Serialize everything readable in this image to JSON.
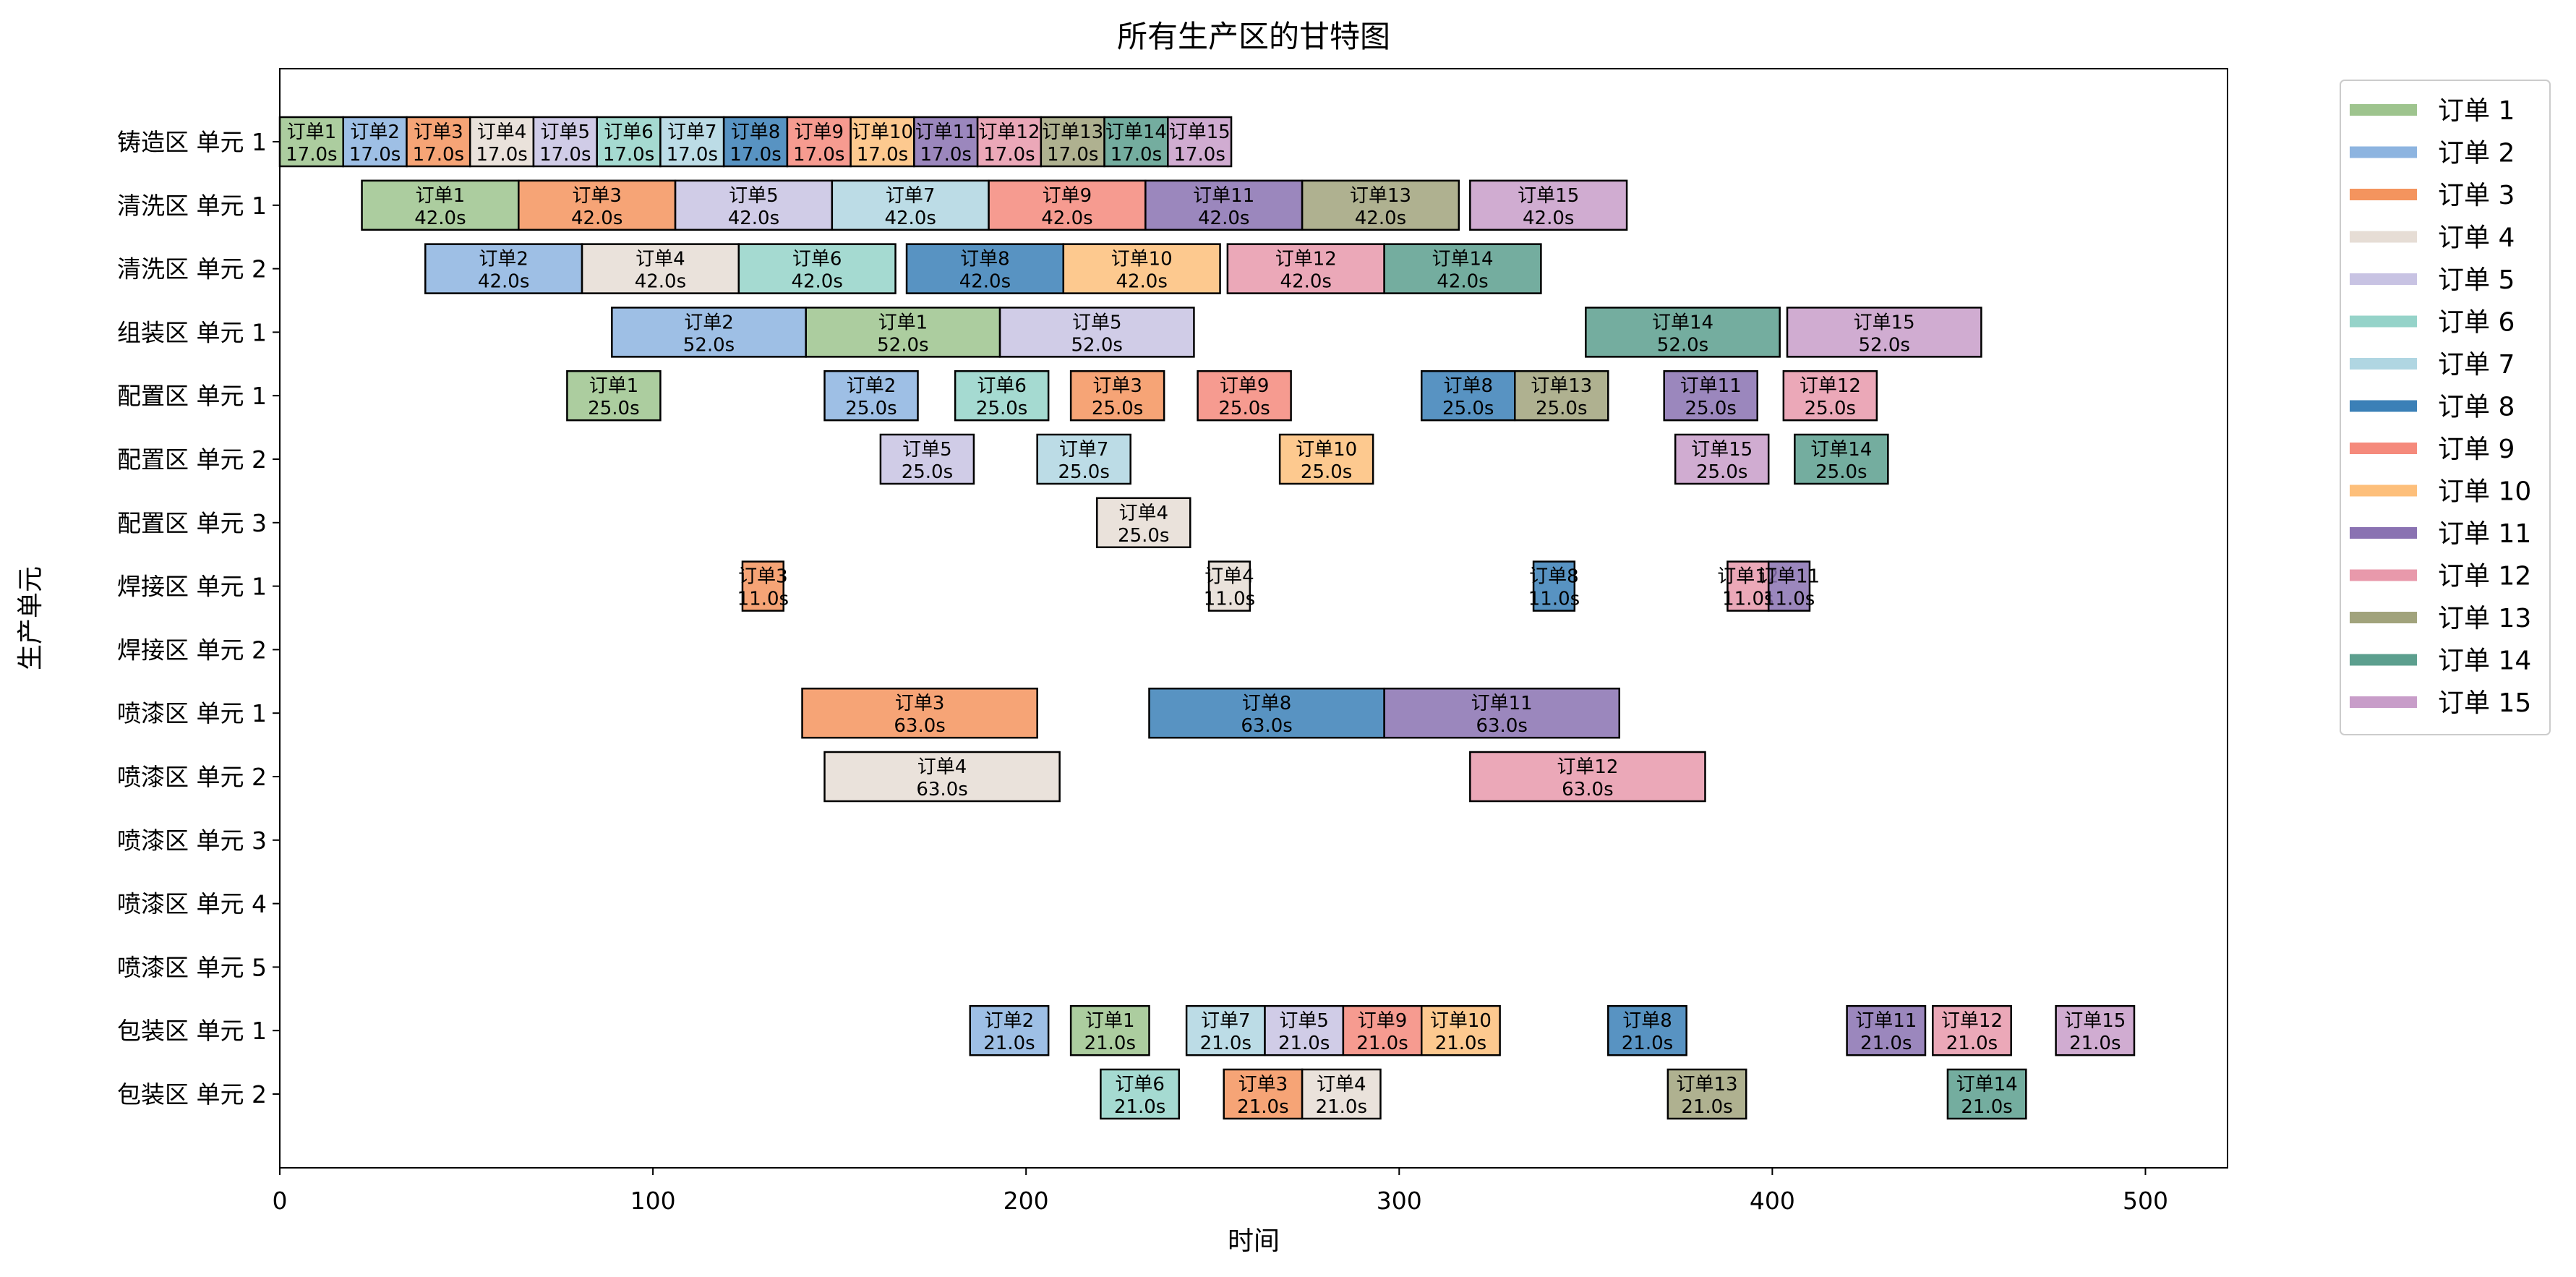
{
  "chart_data": {
    "type": "gantt",
    "title": "所有生产区的甘特图",
    "xlabel": "时间",
    "ylabel": "生产单元",
    "xlim": [
      0,
      522
    ],
    "xticks": [
      0,
      100,
      200,
      300,
      400,
      500
    ],
    "grid": false,
    "legend_position": "outside-right-top",
    "units": [
      "铸造区 单元 1",
      "清洗区 单元 1",
      "清洗区 单元 2",
      "组装区 单元 1",
      "配置区 单元 1",
      "配置区 单元 2",
      "配置区 单元 3",
      "焊接区 单元 1",
      "焊接区 单元 2",
      "喷漆区 单元 1",
      "喷漆区 单元 2",
      "喷漆区 单元 3",
      "喷漆区 单元 4",
      "喷漆区 单元 5",
      "包装区 单元 1",
      "包装区 单元 2"
    ],
    "legend": [
      {
        "label": "订单 1",
        "color": "#9ec48e"
      },
      {
        "label": "订单 2",
        "color": "#8db4e0"
      },
      {
        "label": "订单 3",
        "color": "#f4945e"
      },
      {
        "label": "订单 4",
        "color": "#e6ddd5"
      },
      {
        "label": "订单 5",
        "color": "#c8c3e3"
      },
      {
        "label": "订单 6",
        "color": "#95d3c9"
      },
      {
        "label": "订单 7",
        "color": "#b0d6e2"
      },
      {
        "label": "订单 8",
        "color": "#3b80b7"
      },
      {
        "label": "订单 9",
        "color": "#f58a7c"
      },
      {
        "label": "订单 10",
        "color": "#fdbf7b"
      },
      {
        "label": "订单 11",
        "color": "#8a72b2"
      },
      {
        "label": "订单 12",
        "color": "#e899ab"
      },
      {
        "label": "订单 13",
        "color": "#a1a37c"
      },
      {
        "label": "订单 14",
        "color": "#5c9f8e"
      },
      {
        "label": "订单 15",
        "color": "#c89dc9"
      }
    ],
    "tasks": [
      {
        "unit": 0,
        "order": 1,
        "label": "订单1",
        "start": 0,
        "duration": 17,
        "duration_label": "17.0s"
      },
      {
        "unit": 0,
        "order": 2,
        "label": "订单2",
        "start": 17,
        "duration": 17,
        "duration_label": "17.0s"
      },
      {
        "unit": 0,
        "order": 3,
        "label": "订单3",
        "start": 34,
        "duration": 17,
        "duration_label": "17.0s"
      },
      {
        "unit": 0,
        "order": 4,
        "label": "订单4",
        "start": 51,
        "duration": 17,
        "duration_label": "17.0s"
      },
      {
        "unit": 0,
        "order": 5,
        "label": "订单5",
        "start": 68,
        "duration": 17,
        "duration_label": "17.0s"
      },
      {
        "unit": 0,
        "order": 6,
        "label": "订单6",
        "start": 85,
        "duration": 17,
        "duration_label": "17.0s"
      },
      {
        "unit": 0,
        "order": 7,
        "label": "订单7",
        "start": 102,
        "duration": 17,
        "duration_label": "17.0s"
      },
      {
        "unit": 0,
        "order": 8,
        "label": "订单8",
        "start": 119,
        "duration": 17,
        "duration_label": "17.0s"
      },
      {
        "unit": 0,
        "order": 9,
        "label": "订单9",
        "start": 136,
        "duration": 17,
        "duration_label": "17.0s"
      },
      {
        "unit": 0,
        "order": 10,
        "label": "订单10",
        "start": 153,
        "duration": 17,
        "duration_label": "17.0s"
      },
      {
        "unit": 0,
        "order": 11,
        "label": "订单11",
        "start": 170,
        "duration": 17,
        "duration_label": "17.0s"
      },
      {
        "unit": 0,
        "order": 12,
        "label": "订单12",
        "start": 187,
        "duration": 17,
        "duration_label": "17.0s"
      },
      {
        "unit": 0,
        "order": 13,
        "label": "订单13",
        "start": 204,
        "duration": 17,
        "duration_label": "17.0s"
      },
      {
        "unit": 0,
        "order": 14,
        "label": "订单14",
        "start": 221,
        "duration": 17,
        "duration_label": "17.0s"
      },
      {
        "unit": 0,
        "order": 15,
        "label": "订单15",
        "start": 238,
        "duration": 17,
        "duration_label": "17.0s"
      },
      {
        "unit": 1,
        "order": 1,
        "label": "订单1",
        "start": 22,
        "duration": 42,
        "duration_label": "42.0s"
      },
      {
        "unit": 1,
        "order": 3,
        "label": "订单3",
        "start": 64,
        "duration": 42,
        "duration_label": "42.0s"
      },
      {
        "unit": 1,
        "order": 5,
        "label": "订单5",
        "start": 106,
        "duration": 42,
        "duration_label": "42.0s"
      },
      {
        "unit": 1,
        "order": 7,
        "label": "订单7",
        "start": 148,
        "duration": 42,
        "duration_label": "42.0s"
      },
      {
        "unit": 1,
        "order": 9,
        "label": "订单9",
        "start": 190,
        "duration": 42,
        "duration_label": "42.0s"
      },
      {
        "unit": 1,
        "order": 11,
        "label": "订单11",
        "start": 232,
        "duration": 42,
        "duration_label": "42.0s"
      },
      {
        "unit": 1,
        "order": 13,
        "label": "订单13",
        "start": 274,
        "duration": 42,
        "duration_label": "42.0s"
      },
      {
        "unit": 1,
        "order": 15,
        "label": "订单15",
        "start": 319,
        "duration": 42,
        "duration_label": "42.0s"
      },
      {
        "unit": 2,
        "order": 2,
        "label": "订单2",
        "start": 39,
        "duration": 42,
        "duration_label": "42.0s"
      },
      {
        "unit": 2,
        "order": 4,
        "label": "订单4",
        "start": 81,
        "duration": 42,
        "duration_label": "42.0s"
      },
      {
        "unit": 2,
        "order": 6,
        "label": "订单6",
        "start": 123,
        "duration": 42,
        "duration_label": "42.0s"
      },
      {
        "unit": 2,
        "order": 8,
        "label": "订单8",
        "start": 168,
        "duration": 42,
        "duration_label": "42.0s"
      },
      {
        "unit": 2,
        "order": 10,
        "label": "订单10",
        "start": 210,
        "duration": 42,
        "duration_label": "42.0s"
      },
      {
        "unit": 2,
        "order": 12,
        "label": "订单12",
        "start": 254,
        "duration": 42,
        "duration_label": "42.0s"
      },
      {
        "unit": 2,
        "order": 14,
        "label": "订单14",
        "start": 296,
        "duration": 42,
        "duration_label": "42.0s"
      },
      {
        "unit": 3,
        "order": 2,
        "label": "订单2",
        "start": 89,
        "duration": 52,
        "duration_label": "52.0s"
      },
      {
        "unit": 3,
        "order": 1,
        "label": "订单1",
        "start": 141,
        "duration": 52,
        "duration_label": "52.0s"
      },
      {
        "unit": 3,
        "order": 5,
        "label": "订单5",
        "start": 193,
        "duration": 52,
        "duration_label": "52.0s"
      },
      {
        "unit": 3,
        "order": 14,
        "label": "订单14",
        "start": 350,
        "duration": 52,
        "duration_label": "52.0s"
      },
      {
        "unit": 3,
        "order": 15,
        "label": "订单15",
        "start": 404,
        "duration": 52,
        "duration_label": "52.0s"
      },
      {
        "unit": 4,
        "order": 1,
        "label": "订单1",
        "start": 77,
        "duration": 25,
        "duration_label": "25.0s"
      },
      {
        "unit": 4,
        "order": 2,
        "label": "订单2",
        "start": 146,
        "duration": 25,
        "duration_label": "25.0s"
      },
      {
        "unit": 4,
        "order": 6,
        "label": "订单6",
        "start": 181,
        "duration": 25,
        "duration_label": "25.0s"
      },
      {
        "unit": 4,
        "order": 3,
        "label": "订单3",
        "start": 212,
        "duration": 25,
        "duration_label": "25.0s"
      },
      {
        "unit": 4,
        "order": 9,
        "label": "订单9",
        "start": 246,
        "duration": 25,
        "duration_label": "25.0s"
      },
      {
        "unit": 4,
        "order": 8,
        "label": "订单8",
        "start": 306,
        "duration": 25,
        "duration_label": "25.0s"
      },
      {
        "unit": 4,
        "order": 13,
        "label": "订单13",
        "start": 331,
        "duration": 25,
        "duration_label": "25.0s"
      },
      {
        "unit": 4,
        "order": 11,
        "label": "订单11",
        "start": 371,
        "duration": 25,
        "duration_label": "25.0s"
      },
      {
        "unit": 4,
        "order": 12,
        "label": "订单12",
        "start": 403,
        "duration": 25,
        "duration_label": "25.0s"
      },
      {
        "unit": 5,
        "order": 5,
        "label": "订单5",
        "start": 161,
        "duration": 25,
        "duration_label": "25.0s"
      },
      {
        "unit": 5,
        "order": 7,
        "label": "订单7",
        "start": 203,
        "duration": 25,
        "duration_label": "25.0s"
      },
      {
        "unit": 5,
        "order": 10,
        "label": "订单10",
        "start": 268,
        "duration": 25,
        "duration_label": "25.0s"
      },
      {
        "unit": 5,
        "order": 15,
        "label": "订单15",
        "start": 374,
        "duration": 25,
        "duration_label": "25.0s"
      },
      {
        "unit": 5,
        "order": 14,
        "label": "订单14",
        "start": 406,
        "duration": 25,
        "duration_label": "25.0s"
      },
      {
        "unit": 6,
        "order": 4,
        "label": "订单4",
        "start": 219,
        "duration": 25,
        "duration_label": "25.0s"
      },
      {
        "unit": 7,
        "order": 3,
        "label": "订单3",
        "start": 124,
        "duration": 11,
        "duration_label": "11.0s"
      },
      {
        "unit": 7,
        "order": 4,
        "label": "订单4",
        "start": 249,
        "duration": 11,
        "duration_label": "11.0s"
      },
      {
        "unit": 7,
        "order": 8,
        "label": "订单8",
        "start": 336,
        "duration": 11,
        "duration_label": "11.0s"
      },
      {
        "unit": 7,
        "order": 12,
        "label": "订单12",
        "start": 388,
        "duration": 11,
        "duration_label": "11.0s"
      },
      {
        "unit": 7,
        "order": 11,
        "label": "订单11",
        "start": 399,
        "duration": 11,
        "duration_label": "11.0s"
      },
      {
        "unit": 9,
        "order": 3,
        "label": "订单3",
        "start": 140,
        "duration": 63,
        "duration_label": "63.0s"
      },
      {
        "unit": 9,
        "order": 8,
        "label": "订单8",
        "start": 233,
        "duration": 63,
        "duration_label": "63.0s"
      },
      {
        "unit": 9,
        "order": 11,
        "label": "订单11",
        "start": 296,
        "duration": 63,
        "duration_label": "63.0s"
      },
      {
        "unit": 10,
        "order": 4,
        "label": "订单4",
        "start": 146,
        "duration": 63,
        "duration_label": "63.0s"
      },
      {
        "unit": 10,
        "order": 12,
        "label": "订单12",
        "start": 319,
        "duration": 63,
        "duration_label": "63.0s"
      },
      {
        "unit": 14,
        "order": 2,
        "label": "订单2",
        "start": 185,
        "duration": 21,
        "duration_label": "21.0s"
      },
      {
        "unit": 14,
        "order": 1,
        "label": "订单1",
        "start": 212,
        "duration": 21,
        "duration_label": "21.0s"
      },
      {
        "unit": 14,
        "order": 7,
        "label": "订单7",
        "start": 243,
        "duration": 21,
        "duration_label": "21.0s"
      },
      {
        "unit": 14,
        "order": 5,
        "label": "订单5",
        "start": 264,
        "duration": 21,
        "duration_label": "21.0s"
      },
      {
        "unit": 14,
        "order": 9,
        "label": "订单9",
        "start": 285,
        "duration": 21,
        "duration_label": "21.0s"
      },
      {
        "unit": 14,
        "order": 10,
        "label": "订单10",
        "start": 306,
        "duration": 21,
        "duration_label": "21.0s"
      },
      {
        "unit": 14,
        "order": 8,
        "label": "订单8",
        "start": 356,
        "duration": 21,
        "duration_label": "21.0s"
      },
      {
        "unit": 14,
        "order": 11,
        "label": "订单11",
        "start": 420,
        "duration": 21,
        "duration_label": "21.0s"
      },
      {
        "unit": 14,
        "order": 12,
        "label": "订单12",
        "start": 443,
        "duration": 21,
        "duration_label": "21.0s"
      },
      {
        "unit": 14,
        "order": 15,
        "label": "订单15",
        "start": 476,
        "duration": 21,
        "duration_label": "21.0s"
      },
      {
        "unit": 15,
        "order": 6,
        "label": "订单6",
        "start": 220,
        "duration": 21,
        "duration_label": "21.0s"
      },
      {
        "unit": 15,
        "order": 3,
        "label": "订单3",
        "start": 253,
        "duration": 21,
        "duration_label": "21.0s"
      },
      {
        "unit": 15,
        "order": 4,
        "label": "订单4",
        "start": 274,
        "duration": 21,
        "duration_label": "21.0s"
      },
      {
        "unit": 15,
        "order": 13,
        "label": "订单13",
        "start": 372,
        "duration": 21,
        "duration_label": "21.0s"
      },
      {
        "unit": 15,
        "order": 14,
        "label": "订单14",
        "start": 447,
        "duration": 21,
        "duration_label": "21.0s"
      }
    ]
  }
}
